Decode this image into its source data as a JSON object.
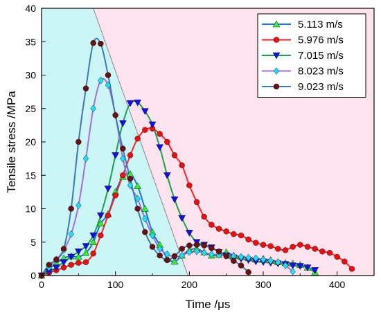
{
  "chart_data": {
    "type": "line",
    "xlabel": "Time /μs",
    "ylabel": "Tensile stress /MPa",
    "xlim": [
      0,
      450
    ],
    "ylim": [
      0,
      40
    ],
    "xticks": [
      "0",
      "100",
      "200",
      "300",
      "400"
    ],
    "yticks": [
      "0",
      "5",
      "10",
      "15",
      "20",
      "25",
      "30",
      "35",
      "40"
    ],
    "legend_position": "top-right",
    "background_regions": [
      {
        "color": "#ccf5f5",
        "polygon": [
          [
            0,
            0
          ],
          [
            0,
            40
          ],
          [
            70,
            40
          ],
          [
            198,
            0
          ]
        ]
      },
      {
        "color": "#fde3ee",
        "polygon": [
          [
            70,
            40
          ],
          [
            450,
            40
          ],
          [
            450,
            0
          ],
          [
            198,
            0
          ]
        ]
      }
    ],
    "divider_line": {
      "color": "#888888",
      "from": [
        70,
        40
      ],
      "to": [
        198,
        0
      ]
    },
    "series": [
      {
        "name": "5.113 m/s",
        "color": "#1f6fe0",
        "marker": "triangle-up",
        "marker_color": "#33ee33",
        "x": [
          0,
          10,
          20,
          30,
          40,
          50,
          60,
          70,
          80,
          90,
          100,
          110,
          120,
          130,
          140,
          150,
          160,
          170,
          180,
          190,
          200,
          210,
          220,
          230,
          240,
          250,
          260,
          270,
          280,
          290,
          300,
          310,
          320,
          330,
          340,
          350,
          360,
          370
        ],
        "y": [
          0,
          1.0,
          1.8,
          2.6,
          2.9,
          2.8,
          3.4,
          5.0,
          7.8,
          9.2,
          12.5,
          14.8,
          15.2,
          13.4,
          10.0,
          6.5,
          4.6,
          2.6,
          2.1,
          3.0,
          3.8,
          4.0,
          3.5,
          3.0,
          3.1,
          3.5,
          3.0,
          2.8,
          2.6,
          2.4,
          2.5,
          2.3,
          2.0,
          1.9,
          1.8,
          1.6,
          1.2,
          0.5
        ]
      },
      {
        "name": "5.976 m/s",
        "color": "#ff2020",
        "marker": "circle",
        "marker_color": "#e81010",
        "x": [
          0,
          10,
          20,
          30,
          40,
          50,
          60,
          70,
          80,
          90,
          100,
          110,
          120,
          130,
          140,
          150,
          160,
          170,
          180,
          190,
          200,
          210,
          220,
          230,
          240,
          250,
          260,
          270,
          280,
          290,
          300,
          310,
          320,
          330,
          340,
          350,
          360,
          370,
          380,
          390,
          400,
          410,
          420
        ],
        "y": [
          0,
          0.4,
          0.8,
          1.2,
          1.6,
          1.9,
          2.0,
          3.3,
          6.0,
          9.0,
          12.0,
          15.0,
          18.0,
          20.5,
          21.8,
          22.0,
          21.2,
          20.0,
          18.0,
          16.5,
          13.5,
          11.0,
          8.8,
          7.6,
          7.0,
          6.6,
          6.2,
          6.0,
          5.4,
          4.9,
          4.6,
          4.4,
          4.0,
          3.8,
          4.3,
          4.6,
          4.3,
          4.0,
          3.6,
          3.4,
          2.8,
          2.1,
          1.0
        ]
      },
      {
        "name": "7.015 m/s",
        "color": "#1aa24a",
        "marker": "triangle-down",
        "marker_color": "#1010ee",
        "x": [
          0,
          10,
          20,
          30,
          40,
          50,
          60,
          70,
          80,
          90,
          100,
          110,
          120,
          130,
          140,
          150,
          160,
          170,
          180,
          190,
          200,
          210,
          220,
          230,
          240,
          250,
          260,
          270,
          280,
          290,
          300,
          310,
          320,
          330,
          340,
          350,
          360,
          370
        ],
        "y": [
          0,
          0.6,
          1.2,
          2.0,
          2.8,
          3.6,
          4.4,
          6.0,
          9.0,
          13.0,
          18.0,
          22.8,
          25.8,
          25.9,
          24.6,
          22.6,
          19.2,
          15.0,
          11.4,
          8.6,
          6.4,
          5.0,
          4.6,
          4.2,
          3.5,
          3.0,
          2.7,
          2.5,
          2.3,
          2.1,
          2.0,
          1.9,
          1.8,
          1.7,
          1.5,
          1.4,
          1.2,
          0.8
        ]
      },
      {
        "name": "8.023 m/s",
        "color": "#a070d8",
        "marker": "diamond",
        "marker_color": "#22ddf5",
        "x": [
          0,
          10,
          20,
          30,
          40,
          50,
          60,
          70,
          80,
          90,
          100,
          110,
          120,
          130,
          140,
          150,
          160,
          170,
          180,
          190,
          200,
          210,
          220,
          230,
          240,
          250,
          260,
          270,
          280,
          290,
          300,
          310,
          320,
          330,
          340
        ],
        "y": [
          0,
          1.2,
          2.4,
          3.8,
          6.2,
          10.5,
          17.5,
          25.0,
          29.2,
          28.5,
          24.0,
          17.5,
          13.5,
          11.5,
          8.5,
          6.0,
          4.0,
          3.2,
          2.8,
          3.0,
          3.5,
          3.6,
          3.4,
          3.2,
          3.1,
          3.0,
          2.9,
          2.8,
          2.7,
          2.6,
          2.4,
          2.2,
          2.0,
          1.5,
          0.6
        ]
      },
      {
        "name": "9.023 m/s",
        "color": "#3a78b8",
        "marker": "circle",
        "marker_color": "#6b1010",
        "x": [
          0,
          10,
          20,
          30,
          40,
          50,
          60,
          70,
          80,
          90,
          100,
          110,
          120,
          130,
          140,
          150,
          160,
          170,
          180,
          190,
          200,
          210,
          220,
          230,
          240,
          250,
          260,
          270,
          280
        ],
        "y": [
          0,
          1.6,
          2.4,
          4.0,
          10.0,
          20.0,
          28.0,
          34.8,
          34.7,
          30.0,
          24.0,
          19.0,
          14.5,
          10.0,
          6.5,
          4.3,
          3.0,
          2.3,
          2.9,
          4.0,
          4.5,
          4.6,
          4.5,
          4.1,
          3.6,
          2.9,
          2.2,
          1.5,
          0.5
        ]
      }
    ]
  }
}
